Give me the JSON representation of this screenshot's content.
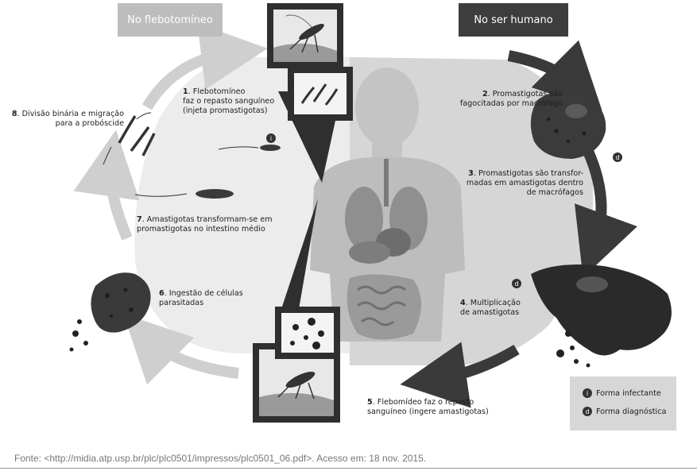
{
  "headers": {
    "left": "No flebotomíneo",
    "right": "No ser humano"
  },
  "steps": [
    {
      "num": "1",
      "text": "Flebotomíneo\nfaz o repasto sanguíneo\n(injeta promastigotas)"
    },
    {
      "num": "2",
      "text": "Promastigotas são\nfagocitadas por macrófago"
    },
    {
      "num": "3",
      "text": "Promastigotas são transfor-\nmadas em amastigotas dentro\nde macrófagos"
    },
    {
      "num": "4",
      "text": "Multiplicação\nde amastigotas"
    },
    {
      "num": "5",
      "text": "Flebomídeo faz o repasto\nsanguíneo (ingere amastigotas)"
    },
    {
      "num": "6",
      "text": "Ingestão de células\nparasitadas"
    },
    {
      "num": "7",
      "text": "Amastigotas transformam-se em\npromastigotas no intestino médio"
    },
    {
      "num": "8",
      "text": "Divisão binária e migração\npara a probóscide"
    }
  ],
  "badges": {
    "infective": "i",
    "diagnostic": "d"
  },
  "legend": {
    "infective_label": "Forma infectante",
    "diagnostic_label": "Forma diagnóstica"
  },
  "source": "Fonte: <http://midia.atp.usp.br/plc/plc0501/impressos/plc0501_06.pdf>. Acesso em: 18 nov. 2015.",
  "colors": {
    "left_arrow": "#cfcfcf",
    "right_arrow": "#3a3a3a",
    "left_header": "#bdbdbd",
    "right_header": "#3d3d3d",
    "legend_bg": "#d7d7d7"
  }
}
